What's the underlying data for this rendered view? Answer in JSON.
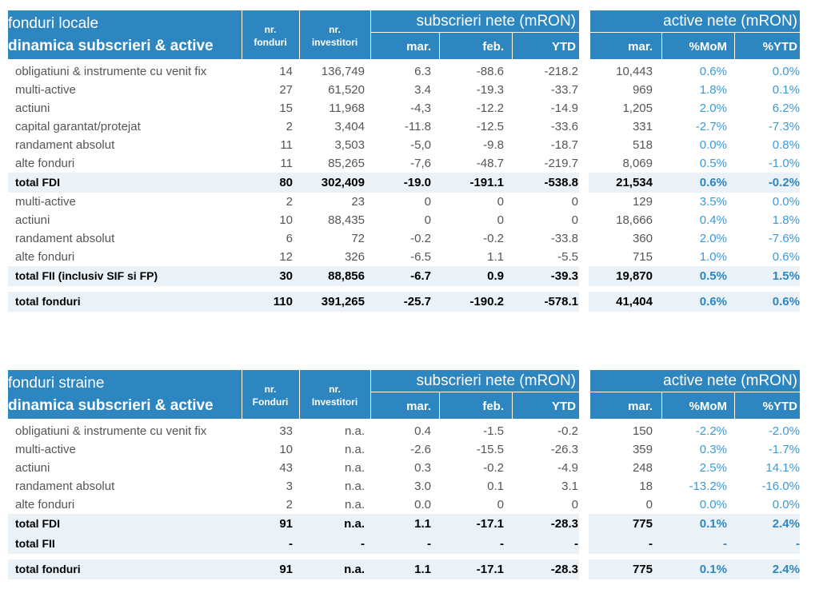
{
  "tables": [
    {
      "title1": "fonduri locale",
      "title2": "dinamica subscrieri & active",
      "h_nr_fonduri": "nr.\nfonduri",
      "h_nr_investitori": "nr.\ninvestitori",
      "group_sub": "subscrieri nete (mRON)",
      "group_act": "active nete (mRON)",
      "sub_mar": "mar.",
      "sub_feb": "feb.",
      "sub_ytd": "YTD",
      "act_mar": "mar.",
      "act_mom": "%MoM",
      "act_ytd": "%YTD",
      "rows": [
        {
          "label": "obligatiuni & instrumente cu venit fix",
          "nf": "14",
          "ni": "136,749",
          "s_mar": "6.3",
          "s_feb": "-88.6",
          "s_ytd": "-218.2",
          "a_mar": "10,443",
          "mom": "0.6%",
          "ytd": "0.0%"
        },
        {
          "label": "multi-active",
          "nf": "27",
          "ni": "61,520",
          "s_mar": "3.4",
          "s_feb": "-19.3",
          "s_ytd": "-33.7",
          "a_mar": "969",
          "mom": "1.8%",
          "ytd": "0.1%"
        },
        {
          "label": "actiuni",
          "nf": "15",
          "ni": "11,968",
          "s_mar": "-4,3",
          "s_feb": "-12.2",
          "s_ytd": "-14.9",
          "a_mar": "1,205",
          "mom": "2.0%",
          "ytd": "6.2%"
        },
        {
          "label": "capital garantat/protejat",
          "nf": "2",
          "ni": "3,404",
          "s_mar": "-11.8",
          "s_feb": "-12.5",
          "s_ytd": "-33.6",
          "a_mar": "331",
          "mom": "-2.7%",
          "ytd": "-7.3%"
        },
        {
          "label": "randament absolut",
          "nf": "11",
          "ni": "3,503",
          "s_mar": "-5,0",
          "s_feb": "-9.8",
          "s_ytd": "-18.7",
          "a_mar": "518",
          "mom": "0.0%",
          "ytd": "0.8%"
        },
        {
          "label": "alte fonduri",
          "nf": "11",
          "ni": "85,265",
          "s_mar": "-7,6",
          "s_feb": "-48.7",
          "s_ytd": "-219.7",
          "a_mar": "8,069",
          "mom": "0.5%",
          "ytd": "-1.0%"
        },
        {
          "label": "total FDI",
          "nf": "80",
          "ni": "302,409",
          "s_mar": "-19.0",
          "s_feb": "-191.1",
          "s_ytd": "-538.8",
          "a_mar": "21,534",
          "mom": "0.6%",
          "ytd": "-0.2%",
          "total": true
        },
        {
          "label": "multi-active",
          "nf": "2",
          "ni": "23",
          "s_mar": "0",
          "s_feb": "0",
          "s_ytd": "0",
          "a_mar": "129",
          "mom": "3.5%",
          "ytd": "0.0%"
        },
        {
          "label": "actiuni",
          "nf": "10",
          "ni": "88,435",
          "s_mar": "0",
          "s_feb": "0",
          "s_ytd": "0",
          "a_mar": "18,666",
          "mom": "0.4%",
          "ytd": "1.8%"
        },
        {
          "label": "randament absolut",
          "nf": "6",
          "ni": "72",
          "s_mar": "-0.2",
          "s_feb": "-0.2",
          "s_ytd": "-33.8",
          "a_mar": "360",
          "mom": "2.0%",
          "ytd": "-7.6%"
        },
        {
          "label": "alte fonduri",
          "nf": "12",
          "ni": "326",
          "s_mar": "-6.5",
          "s_feb": "1.1",
          "s_ytd": "-5.5",
          "a_mar": "715",
          "mom": "1.0%",
          "ytd": "0.6%"
        },
        {
          "label": "total FII (inclusiv SIF si FP)",
          "nf": "30",
          "ni": "88,856",
          "s_mar": "-6.7",
          "s_feb": "0.9",
          "s_ytd": "-39.3",
          "a_mar": "19,870",
          "mom": "0.5%",
          "ytd": "1.5%",
          "total": true
        },
        {
          "label": "total fonduri",
          "nf": "110",
          "ni": "391,265",
          "s_mar": "-25.7",
          "s_feb": "-190.2",
          "s_ytd": "-578.1",
          "a_mar": "41,404",
          "mom": "0.6%",
          "ytd": "0.6%",
          "total": true
        }
      ]
    },
    {
      "title1": "fonduri straine",
      "title2": "dinamica subscrieri & active",
      "h_nr_fonduri": "nr.\nFonduri",
      "h_nr_investitori": "nr.\nInvestitori",
      "group_sub": "subscrieri nete (mRON)",
      "group_act": "active nete (mRON)",
      "sub_mar": "mar.",
      "sub_feb": "feb.",
      "sub_ytd": "YTD",
      "act_mar": "mar.",
      "act_mom": "%MoM",
      "act_ytd": "%YTD",
      "rows": [
        {
          "label": "obligatiuni & instrumente cu venit fix",
          "nf": "33",
          "ni": "n.a.",
          "s_mar": "0.4",
          "s_feb": "-1.5",
          "s_ytd": "-0.2",
          "a_mar": "150",
          "mom": "-2.2%",
          "ytd": "-2.0%"
        },
        {
          "label": "multi-active",
          "nf": "10",
          "ni": "n.a.",
          "s_mar": "-2.6",
          "s_feb": "-15.5",
          "s_ytd": "-26.3",
          "a_mar": "359",
          "mom": "0.3%",
          "ytd": "-1.7%"
        },
        {
          "label": "actiuni",
          "nf": "43",
          "ni": "n.a.",
          "s_mar": "0.3",
          "s_feb": "-0.2",
          "s_ytd": "-4.9",
          "a_mar": "248",
          "mom": "2.5%",
          "ytd": "14.1%"
        },
        {
          "label": "randament absolut",
          "nf": "3",
          "ni": "n.a.",
          "s_mar": "3.0",
          "s_feb": "0.1",
          "s_ytd": "3.1",
          "a_mar": "18",
          "mom": "-13.2%",
          "ytd": "-16.0%"
        },
        {
          "label": "alte fonduri",
          "nf": "2",
          "ni": "n.a.",
          "s_mar": "0.0",
          "s_feb": "0",
          "s_ytd": "0",
          "a_mar": "0",
          "mom": "0.0%",
          "ytd": "0.0%"
        },
        {
          "label": "total FDI",
          "nf": "91",
          "ni": "n.a.",
          "s_mar": "1.1",
          "s_feb": "-17.1",
          "s_ytd": "-28.3",
          "a_mar": "775",
          "mom": "0.1%",
          "ytd": "2.4%",
          "total": true
        },
        {
          "label": "total FII",
          "nf": "-",
          "ni": "-",
          "s_mar": "-",
          "s_feb": "-",
          "s_ytd": "-",
          "a_mar": "-",
          "mom": "-",
          "ytd": "-",
          "total": true
        },
        {
          "label": "total fonduri",
          "nf": "91",
          "ni": "n.a.",
          "s_mar": "1.1",
          "s_feb": "-17.1",
          "s_ytd": "-28.3",
          "a_mar": "775",
          "mom": "0.1%",
          "ytd": "2.4%",
          "total": true
        }
      ]
    }
  ]
}
